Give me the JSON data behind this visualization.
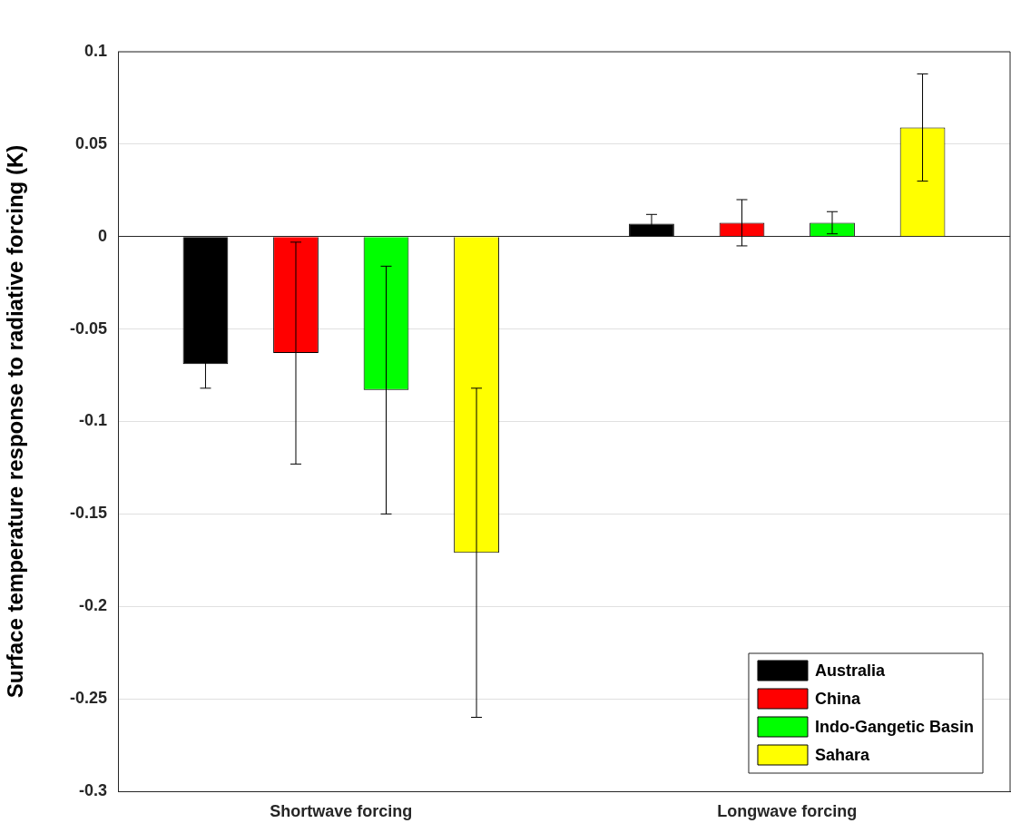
{
  "chart_data": {
    "type": "bar",
    "ylabel": "Surface temperature response to radiative forcing (K)",
    "categories": [
      "Shortwave forcing",
      "Longwave forcing"
    ],
    "series": [
      {
        "name": "Australia",
        "color": "#000000",
        "values": [
          -0.069,
          0.007
        ],
        "errors": [
          0.013,
          0.005
        ]
      },
      {
        "name": "China",
        "color": "#ff0000",
        "values": [
          -0.063,
          0.0075
        ],
        "errors": [
          0.06,
          0.0125
        ]
      },
      {
        "name": "Indo-Gangetic Basin",
        "color": "#00ff00",
        "values": [
          -0.083,
          0.0075
        ],
        "errors": [
          0.067,
          0.006
        ]
      },
      {
        "name": "Sahara",
        "color": "#ffff00",
        "values": [
          -0.171,
          0.059
        ],
        "errors": [
          0.089,
          0.029
        ]
      }
    ],
    "ylim": [
      -0.3,
      0.1
    ],
    "yticks": [
      -0.3,
      -0.25,
      -0.2,
      -0.15,
      -0.1,
      -0.05,
      0,
      0.05,
      0.1
    ],
    "grid": "y",
    "legend": "bottom right"
  }
}
